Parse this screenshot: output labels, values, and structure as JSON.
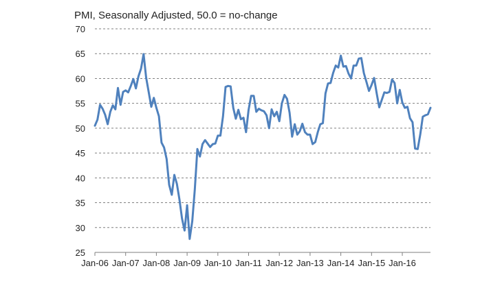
{
  "chart_data": {
    "type": "line",
    "title": "PMI, Seasonally Adjusted, 50.0 = no-change",
    "xlabel": "",
    "ylabel": "",
    "ylim": [
      25,
      70
    ],
    "yticks": [
      25,
      30,
      35,
      40,
      45,
      50,
      55,
      60,
      65,
      70
    ],
    "xtick_labels": [
      "Jan-06",
      "Jan-07",
      "Jan-08",
      "Jan-09",
      "Jan-10",
      "Jan-11",
      "Jan-12",
      "Jan-13",
      "Jan-14",
      "Jan-15",
      "Jan-16"
    ],
    "grid": "horizontal dashed",
    "colors": {
      "line": "#4F81BD",
      "grid": "#7f7f7f",
      "axis": "#7f7f7f"
    },
    "series": [
      {
        "x": [
          "Jan-06",
          "Feb-06",
          "Mar-06",
          "Apr-06",
          "May-06",
          "Jun-06",
          "Jul-06",
          "Aug-06",
          "Sep-06",
          "Oct-06",
          "Nov-06",
          "Dec-06",
          "Jan-07",
          "Feb-07",
          "Mar-07",
          "Apr-07",
          "May-07",
          "Jun-07",
          "Jul-07",
          "Aug-07",
          "Sep-07",
          "Oct-07",
          "Nov-07",
          "Dec-07",
          "Jan-08",
          "Feb-08",
          "Mar-08",
          "Apr-08",
          "May-08",
          "Jun-08",
          "Jul-08",
          "Aug-08",
          "Sep-08",
          "Oct-08",
          "Nov-08",
          "Dec-08",
          "Jan-09",
          "Feb-09",
          "Mar-09",
          "Apr-09",
          "May-09",
          "Jun-09",
          "Jul-09",
          "Aug-09",
          "Sep-09",
          "Oct-09",
          "Nov-09",
          "Dec-09",
          "Jan-10",
          "Feb-10",
          "Mar-10",
          "Apr-10",
          "May-10",
          "Jun-10",
          "Jul-10",
          "Aug-10",
          "Sep-10",
          "Oct-10",
          "Nov-10",
          "Dec-10",
          "Jan-11",
          "Feb-11",
          "Mar-11",
          "Apr-11",
          "May-11",
          "Jun-11",
          "Jul-11",
          "Aug-11",
          "Sep-11",
          "Oct-11",
          "Nov-11",
          "Dec-11",
          "Jan-12",
          "Feb-12",
          "Mar-12",
          "Apr-12",
          "May-12",
          "Jun-12",
          "Jul-12",
          "Aug-12",
          "Sep-12",
          "Oct-12",
          "Nov-12",
          "Dec-12",
          "Jan-13",
          "Feb-13",
          "Mar-13",
          "Apr-13",
          "May-13",
          "Jun-13",
          "Jul-13",
          "Aug-13",
          "Sep-13",
          "Oct-13",
          "Nov-13",
          "Dec-13",
          "Jan-14",
          "Feb-14",
          "Mar-14",
          "Apr-14",
          "May-14",
          "Jun-14",
          "Jul-14",
          "Aug-14",
          "Sep-14",
          "Oct-14",
          "Nov-14",
          "Dec-14",
          "Jan-15",
          "Feb-15",
          "Mar-15",
          "Apr-15",
          "May-15",
          "Jun-15",
          "Jul-15",
          "Aug-15",
          "Sep-15",
          "Oct-15",
          "Nov-15",
          "Dec-15",
          "Jan-16",
          "Feb-16",
          "Mar-16",
          "Apr-16",
          "May-16",
          "Jun-16",
          "Jul-16",
          "Aug-16",
          "Sep-16",
          "Oct-16",
          "Nov-16",
          "Dec-16"
        ],
        "values": [
          50.5,
          51.7,
          54.7,
          53.9,
          52.7,
          50.8,
          53.3,
          54.6,
          53.8,
          58.1,
          54.7,
          57.3,
          57.6,
          57.2,
          58.5,
          59.9,
          58.0,
          60.4,
          62.0,
          64.9,
          60.2,
          57.3,
          54.3,
          56.1,
          54.1,
          52.4,
          47.1,
          46.1,
          43.8,
          38.6,
          36.6,
          40.6,
          38.8,
          35.7,
          31.8,
          29.4,
          34.5,
          27.7,
          31.3,
          37.7,
          45.8,
          44.3,
          46.8,
          47.6,
          46.9,
          46.2,
          46.8,
          46.9,
          48.5,
          48.5,
          52.4,
          58.3,
          58.5,
          58.4,
          54.1,
          51.9,
          53.7,
          51.8,
          52.1,
          49.2,
          53.7,
          56.5,
          56.5,
          53.3,
          53.9,
          53.6,
          53.4,
          52.6,
          50.0,
          53.8,
          52.4,
          53.3,
          51.4,
          55.0,
          56.7,
          55.9,
          53.1,
          48.3,
          50.8,
          48.7,
          49.4,
          50.9,
          49.2,
          48.7,
          48.7,
          46.8,
          47.2,
          49.2,
          50.8,
          51.0,
          57.0,
          59.0,
          59.1,
          61.1,
          62.6,
          62.2,
          64.6,
          62.4,
          62.5,
          61.0,
          60.0,
          62.6,
          62.6,
          64.0,
          64.1,
          61.1,
          59.3,
          57.5,
          58.7,
          60.1,
          57.0,
          54.2,
          55.7,
          57.2,
          57.1,
          57.3,
          59.8,
          59.1,
          55.0,
          57.7,
          55.2,
          54.1,
          54.3,
          52.0,
          51.2,
          45.9,
          45.8,
          48.7,
          52.3,
          52.6,
          52.8,
          54.1
        ]
      }
    ]
  }
}
